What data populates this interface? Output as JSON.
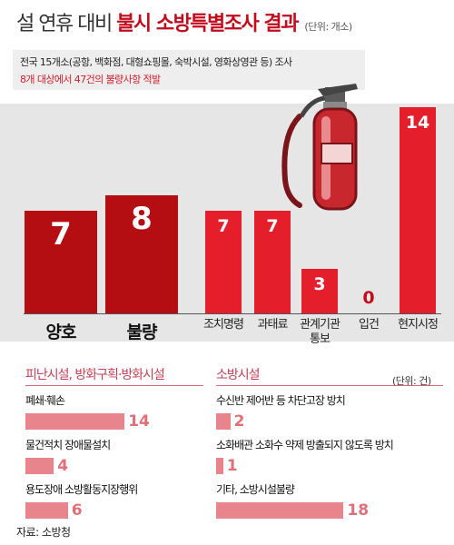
{
  "title": {
    "light": "설 연휴 대비",
    "bold": "불시 소방특별조사 결과",
    "unit": "(단위: 개소)"
  },
  "info": {
    "line1": "전국 15개소(공항, 백화점, 대형쇼핑몰, 숙박시설, 영화상영관 등) 조사",
    "line2": "8개 대상에서 47건의 불량사항 적발"
  },
  "colors": {
    "dark_red": "#b40d12",
    "red": "#e41e2b",
    "pink": "#e8848b",
    "pink_text": "#c33f55"
  },
  "illustration": "fire-extinguisher-icon",
  "chart_data": [
    {
      "type": "bar",
      "categories": [
        "양호",
        "불량"
      ],
      "values": [
        7,
        8
      ],
      "unit": "(단위: 개소)"
    },
    {
      "type": "bar",
      "categories": [
        "조치명령",
        "과태료",
        "관계기관 통보",
        "입건",
        "현지시정"
      ],
      "values": [
        7,
        7,
        3,
        0,
        14
      ],
      "unit": "(단위: 개소)"
    },
    {
      "type": "bar",
      "orientation": "horizontal",
      "title": "피난시설, 방화구획·방화시설",
      "categories": [
        "폐쇄·훼손",
        "물건적치 장애물설치",
        "용도장애 소방활동지장행위"
      ],
      "values": [
        14,
        4,
        6
      ]
    },
    {
      "type": "bar",
      "orientation": "horizontal",
      "title": "소방시설",
      "unit": "(단위: 건)",
      "categories": [
        "수신반 제어반 등 차단고장 방치",
        "소화배관 소화수 약제 방출되지 않도록 방치",
        "기타, 소방시설불량"
      ],
      "values": [
        2,
        1,
        18
      ]
    }
  ],
  "source": "자료: 소방청"
}
